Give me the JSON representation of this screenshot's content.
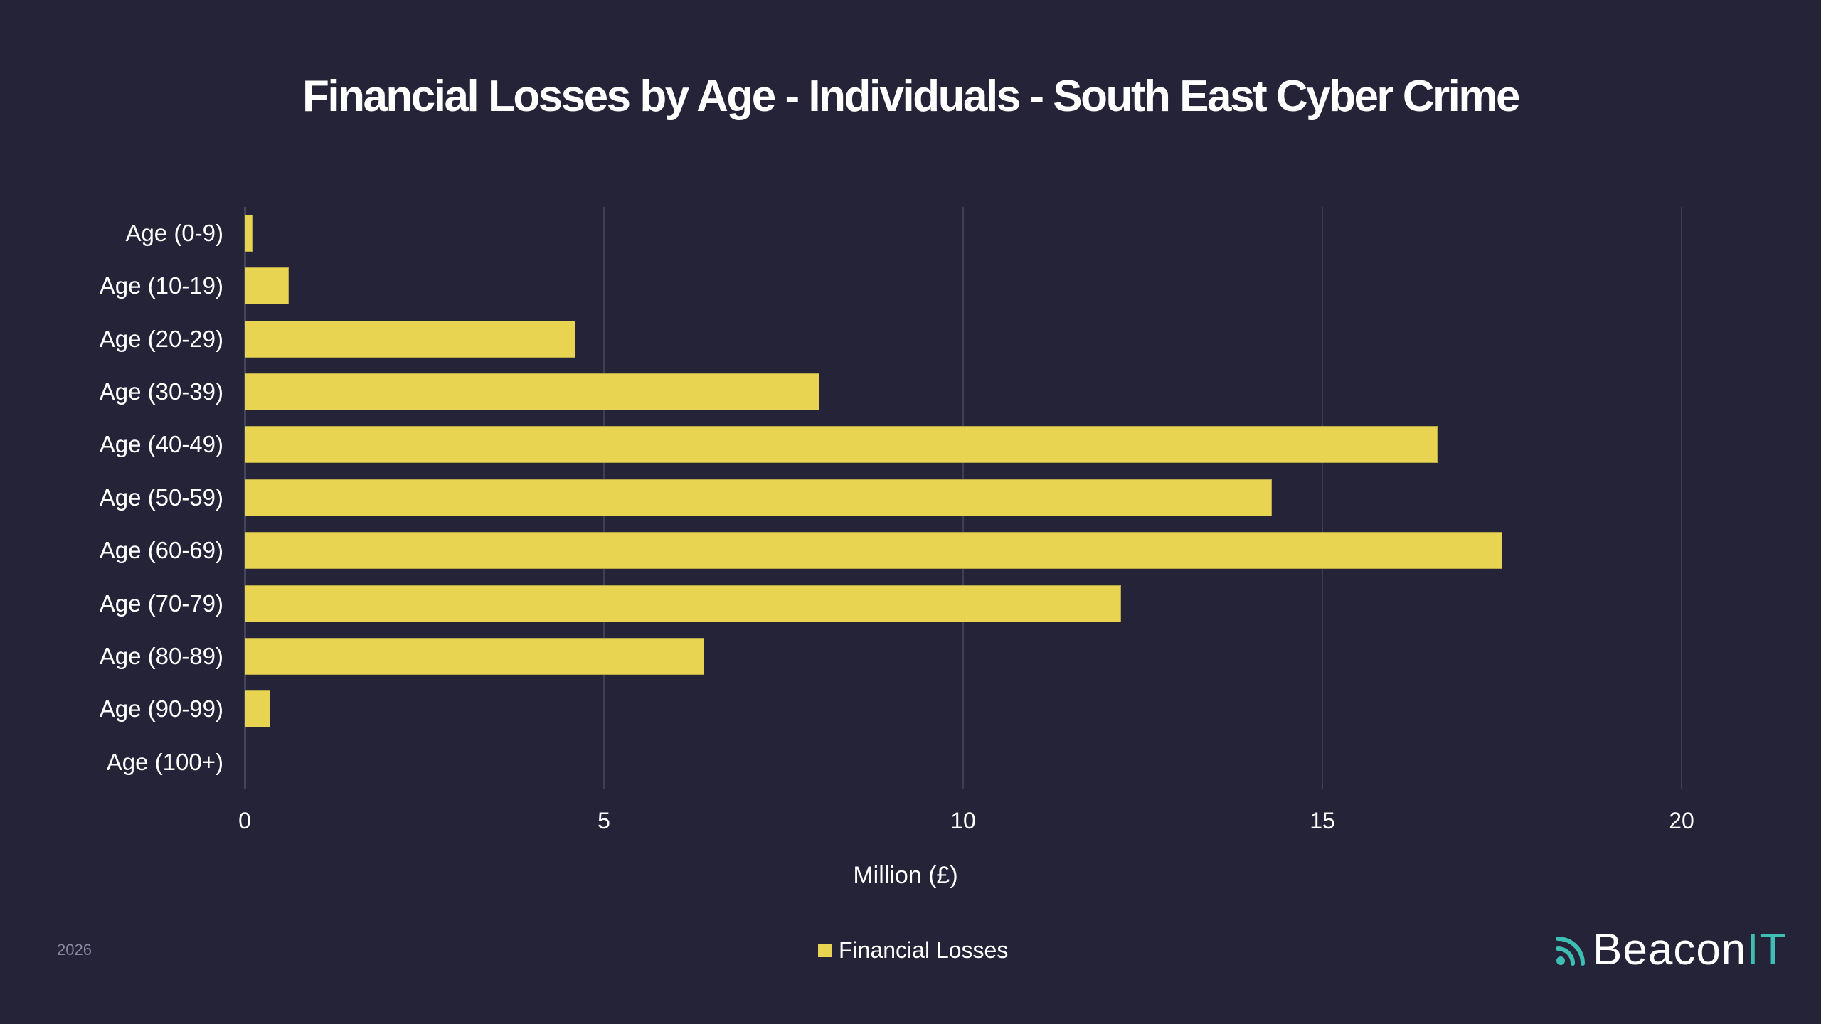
{
  "title": "Financial Losses by Age - Individuals - South East Cyber Crime",
  "chart_data": {
    "type": "bar",
    "orientation": "horizontal",
    "title": "Financial Losses by Age - Individuals - South East Cyber Crime",
    "xlabel": "Million (£)",
    "ylabel": "",
    "xlim": [
      0,
      20
    ],
    "xticks": [
      "0",
      "5",
      "10",
      "15",
      "20"
    ],
    "grid": true,
    "legend_position": "bottom",
    "categories": [
      "Age (0-9)",
      "Age (10-19)",
      "Age (20-29)",
      "Age (30-39)",
      "Age (40-49)",
      "Age (50-59)",
      "Age (60-69)",
      "Age (70-79)",
      "Age (80-89)",
      "Age (90-99)",
      "Age (100+)"
    ],
    "series": [
      {
        "name": "Financial Losses",
        "color": "#e8d451",
        "values": [
          0.11,
          0.61,
          4.6,
          8.0,
          16.6,
          14.3,
          17.5,
          12.2,
          6.4,
          0.36,
          0
        ]
      }
    ]
  },
  "axis": {
    "x_title": "Million (£)",
    "ticks": [
      {
        "label": "0",
        "pos": 0
      },
      {
        "label": "5",
        "pos": 5
      },
      {
        "label": "10",
        "pos": 10
      },
      {
        "label": "15",
        "pos": 15
      },
      {
        "label": "20",
        "pos": 20
      }
    ]
  },
  "legend": {
    "label": "Financial Losses",
    "color": "#e8d451"
  },
  "footer": {
    "year": "2026",
    "logo_main": "Beacon",
    "logo_accent": "IT"
  },
  "colors": {
    "background": "#242337",
    "bar": "#e8d451",
    "grid": "#3f3e55",
    "accent": "#3dbfb5"
  }
}
